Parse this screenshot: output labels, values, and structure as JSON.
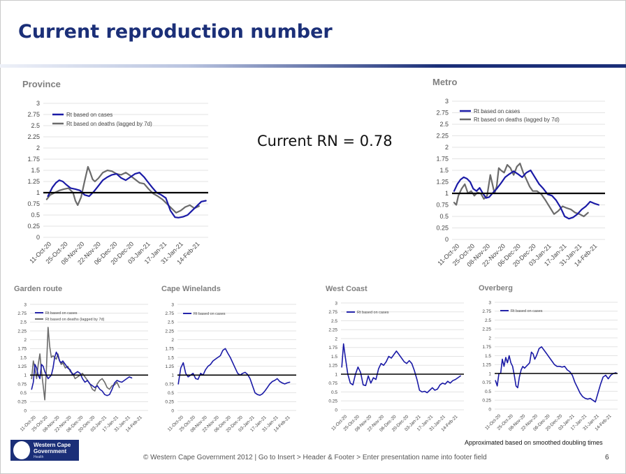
{
  "slide": {
    "title": "Current reproduction number",
    "current_rn": "Current RN = 0.78",
    "note": "Approximated based on smoothed doubling times",
    "footer": "© Western Cape Government 2012  |  Go to Insert > Header & Footer > Enter presentation name into footer field",
    "page_number": "6",
    "logo": {
      "line1": "Western Cape",
      "line2": "Government",
      "line3": "Health"
    },
    "colors": {
      "title": "#1b2f78",
      "cases": "#1a1aa6",
      "deaths": "#6b6b6b",
      "threshold": "#000000"
    }
  },
  "chart_data": [
    {
      "type": "line",
      "title": "Province",
      "x_ticks": [
        "11-Oct-20",
        "25-Oct-20",
        "08-Nov-20",
        "22-Nov-20",
        "06-Dec-20",
        "20-Dec-20",
        "03-Jan-21",
        "17-Jan-21",
        "31-Jan-21",
        "14-Feb-21"
      ],
      "y_ticks": [
        "0",
        "0.25",
        "0.5",
        "0.75",
        "1",
        "1.25",
        "1.5",
        "1.75",
        "2",
        "2.25",
        "2.5",
        "2.75",
        "3"
      ],
      "ylim": [
        0,
        3
      ],
      "reference_line": 1,
      "legend_position": "top-left",
      "grid": true,
      "series": [
        {
          "name": "Rt based on cases",
          "color": "#1a1aa6",
          "x": [
            4,
            6,
            8,
            11,
            14,
            17,
            20,
            24,
            28,
            32,
            36,
            40,
            44,
            48,
            52,
            56,
            60,
            64,
            68,
            72,
            76,
            80,
            84,
            88,
            91,
            95,
            99,
            103,
            107,
            111,
            115,
            118,
            122,
            126,
            130,
            134,
            138,
            142
          ],
          "values": [
            0.92,
            1.02,
            1.12,
            1.22,
            1.28,
            1.25,
            1.18,
            1.1,
            1.08,
            1.05,
            0.95,
            0.92,
            1.02,
            1.15,
            1.28,
            1.35,
            1.4,
            1.42,
            1.33,
            1.28,
            1.35,
            1.42,
            1.45,
            1.35,
            1.25,
            1.12,
            1.0,
            0.95,
            0.88,
            0.6,
            0.45,
            0.44,
            0.46,
            0.5,
            0.6,
            0.7,
            0.8,
            0.82
          ]
        },
        {
          "name": "Rt based on deaths (lagged by 7d)",
          "color": "#6b6b6b",
          "x": [
            3,
            6,
            10,
            14,
            18,
            22,
            26,
            28,
            30,
            33,
            36,
            39,
            41,
            43,
            45,
            48,
            52,
            56,
            60,
            64,
            68,
            72,
            76,
            80,
            84,
            88,
            92,
            96,
            100,
            104,
            108,
            112,
            116,
            120,
            124,
            128,
            132,
            136
          ],
          "values": [
            0.85,
            0.95,
            1.0,
            1.05,
            1.08,
            1.1,
            1.0,
            0.82,
            0.72,
            0.9,
            1.25,
            1.58,
            1.45,
            1.3,
            1.25,
            1.32,
            1.45,
            1.5,
            1.48,
            1.42,
            1.4,
            1.45,
            1.38,
            1.3,
            1.22,
            1.2,
            1.08,
            0.98,
            0.92,
            0.85,
            0.75,
            0.65,
            0.55,
            0.6,
            0.68,
            0.72,
            0.65,
            0.7
          ]
        }
      ]
    },
    {
      "type": "line",
      "title": "Metro",
      "x_ticks": [
        "11-Oct-20",
        "25-Oct-20",
        "08-Nov-20",
        "22-Nov-20",
        "06-Dec-20",
        "20-Dec-20",
        "03-Jan-21",
        "17-Jan-21",
        "31-Jan-21",
        "14-Feb-21"
      ],
      "y_ticks": [
        "0",
        "0.25",
        "0.5",
        "0.75",
        "1",
        "1.25",
        "1.5",
        "1.75",
        "2",
        "2.25",
        "2.5",
        "2.75",
        "3"
      ],
      "ylim": [
        0,
        3
      ],
      "reference_line": 1,
      "legend_position": "top-left",
      "grid": true,
      "series": [
        {
          "name": "Rt based on cases",
          "color": "#1a1aa6",
          "x": [
            2,
            5,
            8,
            11,
            14,
            17,
            20,
            23,
            26,
            29,
            32,
            35,
            38,
            42,
            46,
            50,
            54,
            58,
            62,
            66,
            70,
            74,
            78,
            82,
            86,
            90,
            94,
            98,
            102,
            106,
            110,
            114,
            118,
            122,
            126,
            130,
            134,
            138
          ],
          "values": [
            1.05,
            1.2,
            1.3,
            1.35,
            1.32,
            1.25,
            1.1,
            1.05,
            1.12,
            1.0,
            0.9,
            0.92,
            1.0,
            1.1,
            1.22,
            1.35,
            1.42,
            1.48,
            1.42,
            1.35,
            1.45,
            1.5,
            1.35,
            1.2,
            1.1,
            0.98,
            0.95,
            0.85,
            0.7,
            0.5,
            0.45,
            0.48,
            0.55,
            0.65,
            0.72,
            0.82,
            0.78,
            0.75
          ]
        },
        {
          "name": "Rt based on deaths (lagged by 7d)",
          "color": "#6b6b6b",
          "x": [
            2,
            4,
            6,
            9,
            12,
            15,
            18,
            21,
            24,
            27,
            30,
            33,
            36,
            38,
            40,
            42,
            44,
            46,
            49,
            52,
            55,
            58,
            61,
            64,
            67,
            70,
            73,
            76,
            80,
            84,
            88,
            92,
            96,
            100,
            104,
            108,
            112,
            116,
            120,
            124,
            128
          ],
          "values": [
            0.8,
            0.75,
            0.95,
            1.1,
            1.2,
            1.0,
            1.05,
            0.95,
            1.02,
            1.0,
            0.88,
            0.95,
            1.4,
            1.2,
            1.0,
            1.15,
            1.55,
            1.5,
            1.45,
            1.62,
            1.55,
            1.4,
            1.58,
            1.65,
            1.45,
            1.3,
            1.15,
            1.05,
            1.05,
            0.98,
            0.85,
            0.7,
            0.55,
            0.62,
            0.72,
            0.68,
            0.65,
            0.58,
            0.55,
            0.5,
            0.58
          ]
        }
      ]
    },
    {
      "type": "line",
      "title": "Garden route",
      "x_ticks": [
        "11-Oct-20",
        "25-Oct-20",
        "08-Nov-20",
        "22-Nov-20",
        "06-Dec-20",
        "20-Dec-20",
        "03-Jan-21",
        "17-Jan-21",
        "31-Jan-21",
        "14-Feb-21"
      ],
      "y_ticks": [
        "0",
        "0.25",
        "0.5",
        "0.75",
        "1",
        "1.25",
        "1.5",
        "1.75",
        "2",
        "2.25",
        "2.5",
        "2.75",
        "3"
      ],
      "ylim": [
        0,
        3
      ],
      "reference_line": 1,
      "legend_position": "top-left",
      "grid": true,
      "series": [
        {
          "name": "Rt based on cases",
          "color": "#1a1aa6",
          "x": [
            2,
            4,
            6,
            8,
            10,
            12,
            14,
            16,
            18,
            20,
            22,
            24,
            26,
            28,
            30,
            32,
            34,
            36,
            38,
            40,
            43,
            46,
            49,
            52,
            55,
            58,
            61,
            64,
            67,
            70,
            73,
            76,
            79,
            82,
            85,
            88,
            91,
            94,
            97,
            100,
            103,
            106,
            109,
            112,
            115,
            118,
            121,
            124
          ],
          "values": [
            0.6,
            0.8,
            1.3,
            1.2,
            1.0,
            0.9,
            1.3,
            1.25,
            1.1,
            1.0,
            0.9,
            0.95,
            1.0,
            1.2,
            1.5,
            1.65,
            1.55,
            1.4,
            1.35,
            1.4,
            1.3,
            1.2,
            1.15,
            1.0,
            1.05,
            1.1,
            1.05,
            0.9,
            0.8,
            0.85,
            0.75,
            0.7,
            0.65,
            0.7,
            0.6,
            0.55,
            0.45,
            0.42,
            0.45,
            0.6,
            0.78,
            0.85,
            0.82,
            0.8,
            0.85,
            0.9,
            0.95,
            0.92
          ]
        },
        {
          "name": "Rt based on deaths (lagged by 7d)",
          "color": "#6b6b6b",
          "x": [
            2,
            4,
            6,
            8,
            10,
            12,
            14,
            16,
            18,
            20,
            22,
            24,
            26,
            28,
            30,
            32,
            34,
            36,
            38,
            40,
            43,
            46,
            49,
            52,
            55,
            58,
            61,
            64,
            67,
            70,
            73,
            76,
            79,
            82,
            85,
            88,
            91,
            94,
            97,
            100,
            103,
            106,
            109
          ],
          "values": [
            0.9,
            1.4,
            1.2,
            0.9,
            1.3,
            1.6,
            1.1,
            0.7,
            0.3,
            1.2,
            2.35,
            1.8,
            1.5,
            1.55,
            1.5,
            1.45,
            1.6,
            1.4,
            1.3,
            1.35,
            1.2,
            1.25,
            1.1,
            1.05,
            0.9,
            0.95,
            1.0,
            1.05,
            0.95,
            0.85,
            0.75,
            0.6,
            0.55,
            0.75,
            0.85,
            0.9,
            0.8,
            0.65,
            0.6,
            0.7,
            0.72,
            0.8,
            0.65
          ]
        }
      ]
    },
    {
      "type": "line",
      "title": "Cape Winelands",
      "x_ticks": [
        "11-Oct-20",
        "25-Oct-20",
        "08-Nov-20",
        "22-Nov-20",
        "06-Dec-20",
        "20-Dec-20",
        "03-Jan-21",
        "17-Jan-21",
        "31-Jan-21",
        "14-Feb-21"
      ],
      "y_ticks": [
        "0",
        "0.25",
        "0.5",
        "0.75",
        "1",
        "1.25",
        "1.5",
        "1.75",
        "2",
        "2.25",
        "2.5",
        "2.75",
        "3"
      ],
      "ylim": [
        0,
        3
      ],
      "reference_line": 1,
      "legend_position": "top-left",
      "grid": true,
      "series": [
        {
          "name": "Rt based on cases",
          "color": "#1a1aa6",
          "x": [
            1,
            4,
            7,
            10,
            13,
            16,
            19,
            22,
            25,
            28,
            31,
            34,
            37,
            40,
            43,
            46,
            49,
            52,
            55,
            58,
            61,
            64,
            67,
            70,
            73,
            76,
            79,
            82,
            85,
            88,
            91,
            94,
            97,
            100,
            103,
            106,
            109,
            112,
            115,
            118,
            121,
            124,
            127,
            130,
            133,
            136
          ],
          "values": [
            0.75,
            1.2,
            1.35,
            1.05,
            0.95,
            1.0,
            1.05,
            0.9,
            0.88,
            1.05,
            1.0,
            1.15,
            1.25,
            1.3,
            1.4,
            1.45,
            1.5,
            1.55,
            1.7,
            1.75,
            1.62,
            1.5,
            1.35,
            1.2,
            1.05,
            1.0,
            1.05,
            1.08,
            1.02,
            0.9,
            0.7,
            0.5,
            0.45,
            0.43,
            0.47,
            0.55,
            0.65,
            0.75,
            0.82,
            0.85,
            0.9,
            0.82,
            0.78,
            0.75,
            0.78,
            0.8
          ]
        }
      ]
    },
    {
      "type": "line",
      "title": "West Coast",
      "x_ticks": [
        "11-Oct-20",
        "25-Oct-20",
        "08-Nov-20",
        "22-Nov-20",
        "06-Dec-20",
        "20-Dec-20",
        "03-Jan-21",
        "17-Jan-21",
        "31-Jan-21",
        "14-Feb-21"
      ],
      "y_ticks": [
        "0",
        "0.25",
        "0.5",
        "0.75",
        "1",
        "1.25",
        "1.5",
        "1.75",
        "2",
        "2.25",
        "2.5",
        "2.75",
        "3"
      ],
      "ylim": [
        0,
        3
      ],
      "reference_line": 1,
      "legend_position": "top-left",
      "grid": true,
      "series": [
        {
          "name": "Rt based on cases",
          "color": "#1a1aa6",
          "x": [
            1,
            3,
            5,
            8,
            11,
            14,
            17,
            20,
            23,
            26,
            29,
            32,
            35,
            38,
            41,
            44,
            47,
            50,
            53,
            56,
            59,
            62,
            65,
            68,
            71,
            74,
            77,
            80,
            83,
            86,
            89,
            92,
            95,
            98,
            101,
            104,
            107,
            110,
            113,
            116,
            119,
            122,
            125,
            128,
            131,
            134,
            137,
            140
          ],
          "values": [
            1.2,
            1.85,
            1.5,
            1.0,
            0.75,
            0.7,
            1.0,
            1.2,
            1.05,
            0.7,
            0.68,
            0.95,
            0.75,
            0.9,
            0.85,
            1.15,
            1.3,
            1.25,
            1.35,
            1.5,
            1.45,
            1.55,
            1.65,
            1.55,
            1.45,
            1.35,
            1.3,
            1.38,
            1.3,
            1.1,
            0.85,
            0.55,
            0.5,
            0.52,
            0.48,
            0.55,
            0.62,
            0.55,
            0.58,
            0.7,
            0.75,
            0.72,
            0.8,
            0.75,
            0.82,
            0.85,
            0.9,
            0.95
          ]
        }
      ]
    },
    {
      "type": "line",
      "title": "Overberg",
      "x_ticks": [
        "11-Oct-20",
        "25-Oct-20",
        "08-Nov-20",
        "22-Nov-20",
        "06-Dec-20",
        "20-Dec-20",
        "03-Jan-21",
        "17-Jan-21",
        "31-Jan-21",
        "14-Feb-21"
      ],
      "y_ticks": [
        "0",
        "0.25",
        "0.5",
        "0.75",
        "1",
        "1.25",
        "1.5",
        "1.75",
        "2",
        "2.25",
        "2.5",
        "2.75",
        "3"
      ],
      "ylim": [
        0,
        3
      ],
      "reference_line": 1,
      "legend_position": "top-left",
      "grid": true,
      "series": [
        {
          "name": "Rt based on cases",
          "color": "#1a1aa6",
          "x": [
            1,
            3,
            5,
            7,
            9,
            11,
            13,
            15,
            17,
            19,
            21,
            23,
            25,
            27,
            29,
            31,
            33,
            35,
            37,
            39,
            41,
            43,
            45,
            47,
            49,
            52,
            55,
            58,
            61,
            64,
            67,
            70,
            73,
            76,
            79,
            82,
            85,
            88,
            91,
            94,
            97,
            100,
            103,
            106,
            109,
            112,
            115,
            118,
            121,
            124,
            127,
            130,
            133,
            136,
            139,
            142
          ],
          "values": [
            0.8,
            0.65,
            1.0,
            1.0,
            1.4,
            1.2,
            1.45,
            1.3,
            1.5,
            1.3,
            1.2,
            0.95,
            0.65,
            0.6,
            0.9,
            1.1,
            1.2,
            1.15,
            1.2,
            1.25,
            1.3,
            1.6,
            1.55,
            1.4,
            1.5,
            1.7,
            1.75,
            1.65,
            1.55,
            1.45,
            1.35,
            1.25,
            1.2,
            1.2,
            1.18,
            1.2,
            1.1,
            1.05,
            0.95,
            0.75,
            0.6,
            0.45,
            0.35,
            0.3,
            0.28,
            0.3,
            0.25,
            0.2,
            0.45,
            0.7,
            0.9,
            0.95,
            0.85,
            0.95,
            1.0,
            1.02
          ]
        }
      ]
    }
  ]
}
